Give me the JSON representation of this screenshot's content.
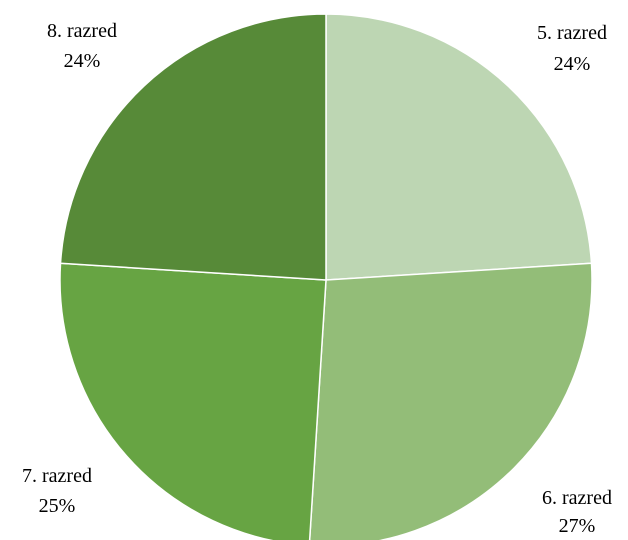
{
  "chart_data": {
    "type": "pie",
    "title": "",
    "slices": [
      {
        "category": "5. razred",
        "value": 24,
        "label": "24%",
        "color": "#bdd6b3"
      },
      {
        "category": "6. razred",
        "value": 27,
        "label": "27%",
        "color": "#93bd78"
      },
      {
        "category": "7. razred",
        "value": 25,
        "label": "25%",
        "color": "#67a443"
      },
      {
        "category": "8. razred",
        "value": 24,
        "label": "24%",
        "color": "#578a38"
      }
    ],
    "start": "12 o'clock",
    "direction": "clockwise",
    "slice_border_color": "#ffffff",
    "legend": "none"
  }
}
